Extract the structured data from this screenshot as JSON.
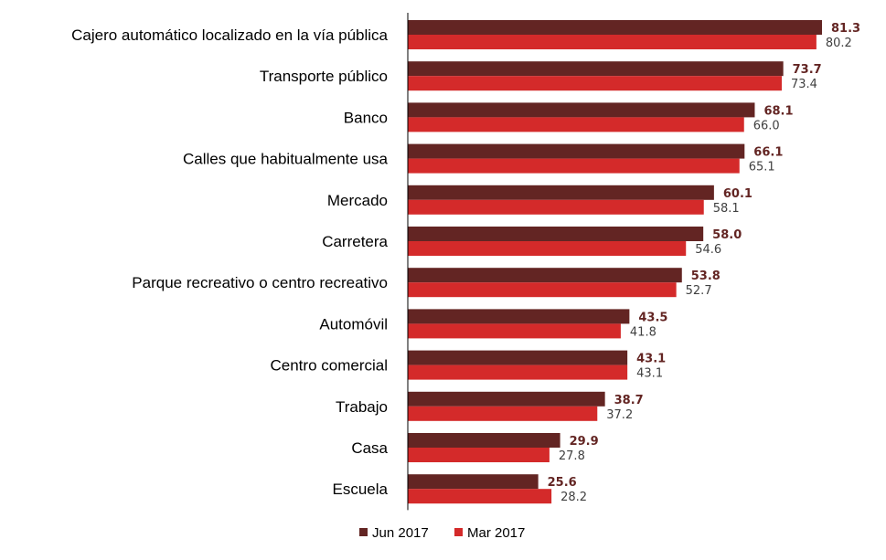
{
  "chart_data": {
    "type": "bar",
    "orientation": "horizontal",
    "categories": [
      "Cajero automático localizado en la vía pública",
      "Transporte público",
      "Banco",
      "Calles que habitualmente usa",
      "Mercado",
      "Carretera",
      "Parque recreativo o centro recreativo",
      "Automóvil",
      "Centro comercial",
      "Trabajo",
      "Casa",
      "Escuela"
    ],
    "series": [
      {
        "name": "Jun 2017",
        "color": "#632523",
        "values": [
          81.3,
          73.7,
          68.1,
          66.1,
          60.1,
          58.0,
          53.8,
          43.5,
          43.1,
          38.7,
          29.9,
          25.6
        ],
        "labels": [
          "81.3",
          "73.7",
          "68.1",
          "66.1",
          "60.1",
          "58.0",
          "53.8",
          "43.5",
          "43.1",
          "38.7",
          "29.9",
          "25.6"
        ]
      },
      {
        "name": "Mar 2017",
        "color": "#D42A2A",
        "values": [
          80.2,
          73.4,
          66.0,
          65.1,
          58.1,
          54.6,
          52.7,
          41.8,
          43.1,
          37.2,
          27.8,
          28.2
        ],
        "labels": [
          "80.2",
          "73.4",
          "66.0",
          "65.1",
          "58.1",
          "54.6",
          "52.7",
          "41.8",
          "43.1",
          "37.2",
          "27.8",
          "28.2"
        ]
      }
    ],
    "title": "",
    "xlabel": "",
    "ylabel": "",
    "xlim": [
      0,
      81.3
    ],
    "legend": {
      "position": "bottom"
    },
    "grid": false
  }
}
